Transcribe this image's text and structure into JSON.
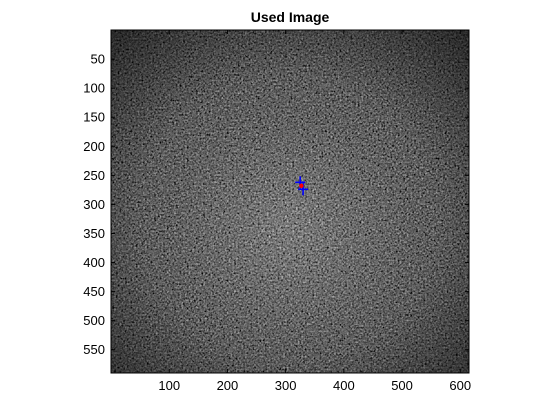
{
  "figure": {
    "title": "Used Image"
  },
  "chart_data": {
    "type": "image",
    "title": "Used Image",
    "xlabel": "",
    "ylabel": "",
    "xlim": [
      0,
      615
    ],
    "ylim": [
      0,
      590
    ],
    "y_reversed": true,
    "x_ticks": [
      100,
      200,
      300,
      400,
      500,
      600
    ],
    "y_ticks": [
      50,
      100,
      150,
      200,
      250,
      300,
      350,
      400,
      450,
      500,
      550
    ],
    "grid": false,
    "image_description": "grayscale speckled texture",
    "overlays": [
      {
        "type": "marker",
        "shape": "plus",
        "color": "#0000ff",
        "x": 325,
        "y": 262
      },
      {
        "type": "marker",
        "shape": "plus",
        "color": "#0000ff",
        "x": 330,
        "y": 274
      },
      {
        "type": "marker",
        "shape": "dot",
        "color": "#ff0000",
        "x": 327,
        "y": 268
      }
    ],
    "colors": {
      "marker_blue": "#0000ff",
      "marker_red": "#ff0000",
      "axis": "#000000"
    }
  }
}
